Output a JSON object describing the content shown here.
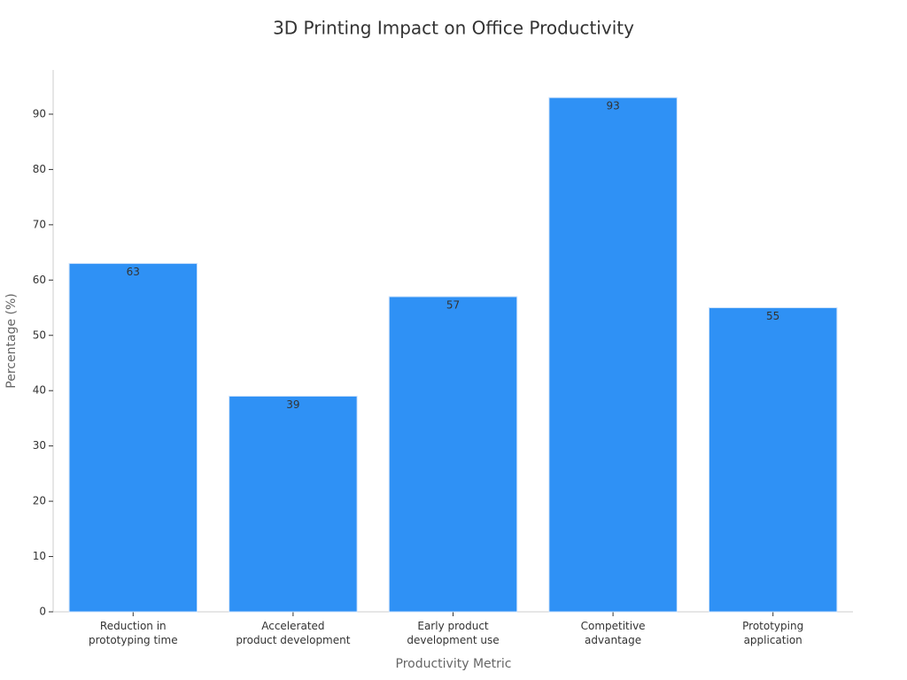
{
  "chart_data": {
    "type": "bar",
    "title": "3D Printing Impact on Office Productivity",
    "x_label": "Productivity Metric",
    "y_label": "Percentage (%)",
    "categories": [
      "Reduction in\nprototyping time",
      "Accelerated\nproduct development",
      "Early product\ndevelopment use",
      "Competitive\nadvantage",
      "Prototyping\napplication"
    ],
    "values": [
      63,
      39,
      57,
      93,
      55
    ],
    "color": "#2f91f5",
    "ylim": [
      0,
      98
    ],
    "yticks": [
      0,
      10,
      20,
      30,
      40,
      50,
      60,
      70,
      80,
      90
    ],
    "grid": false
  }
}
